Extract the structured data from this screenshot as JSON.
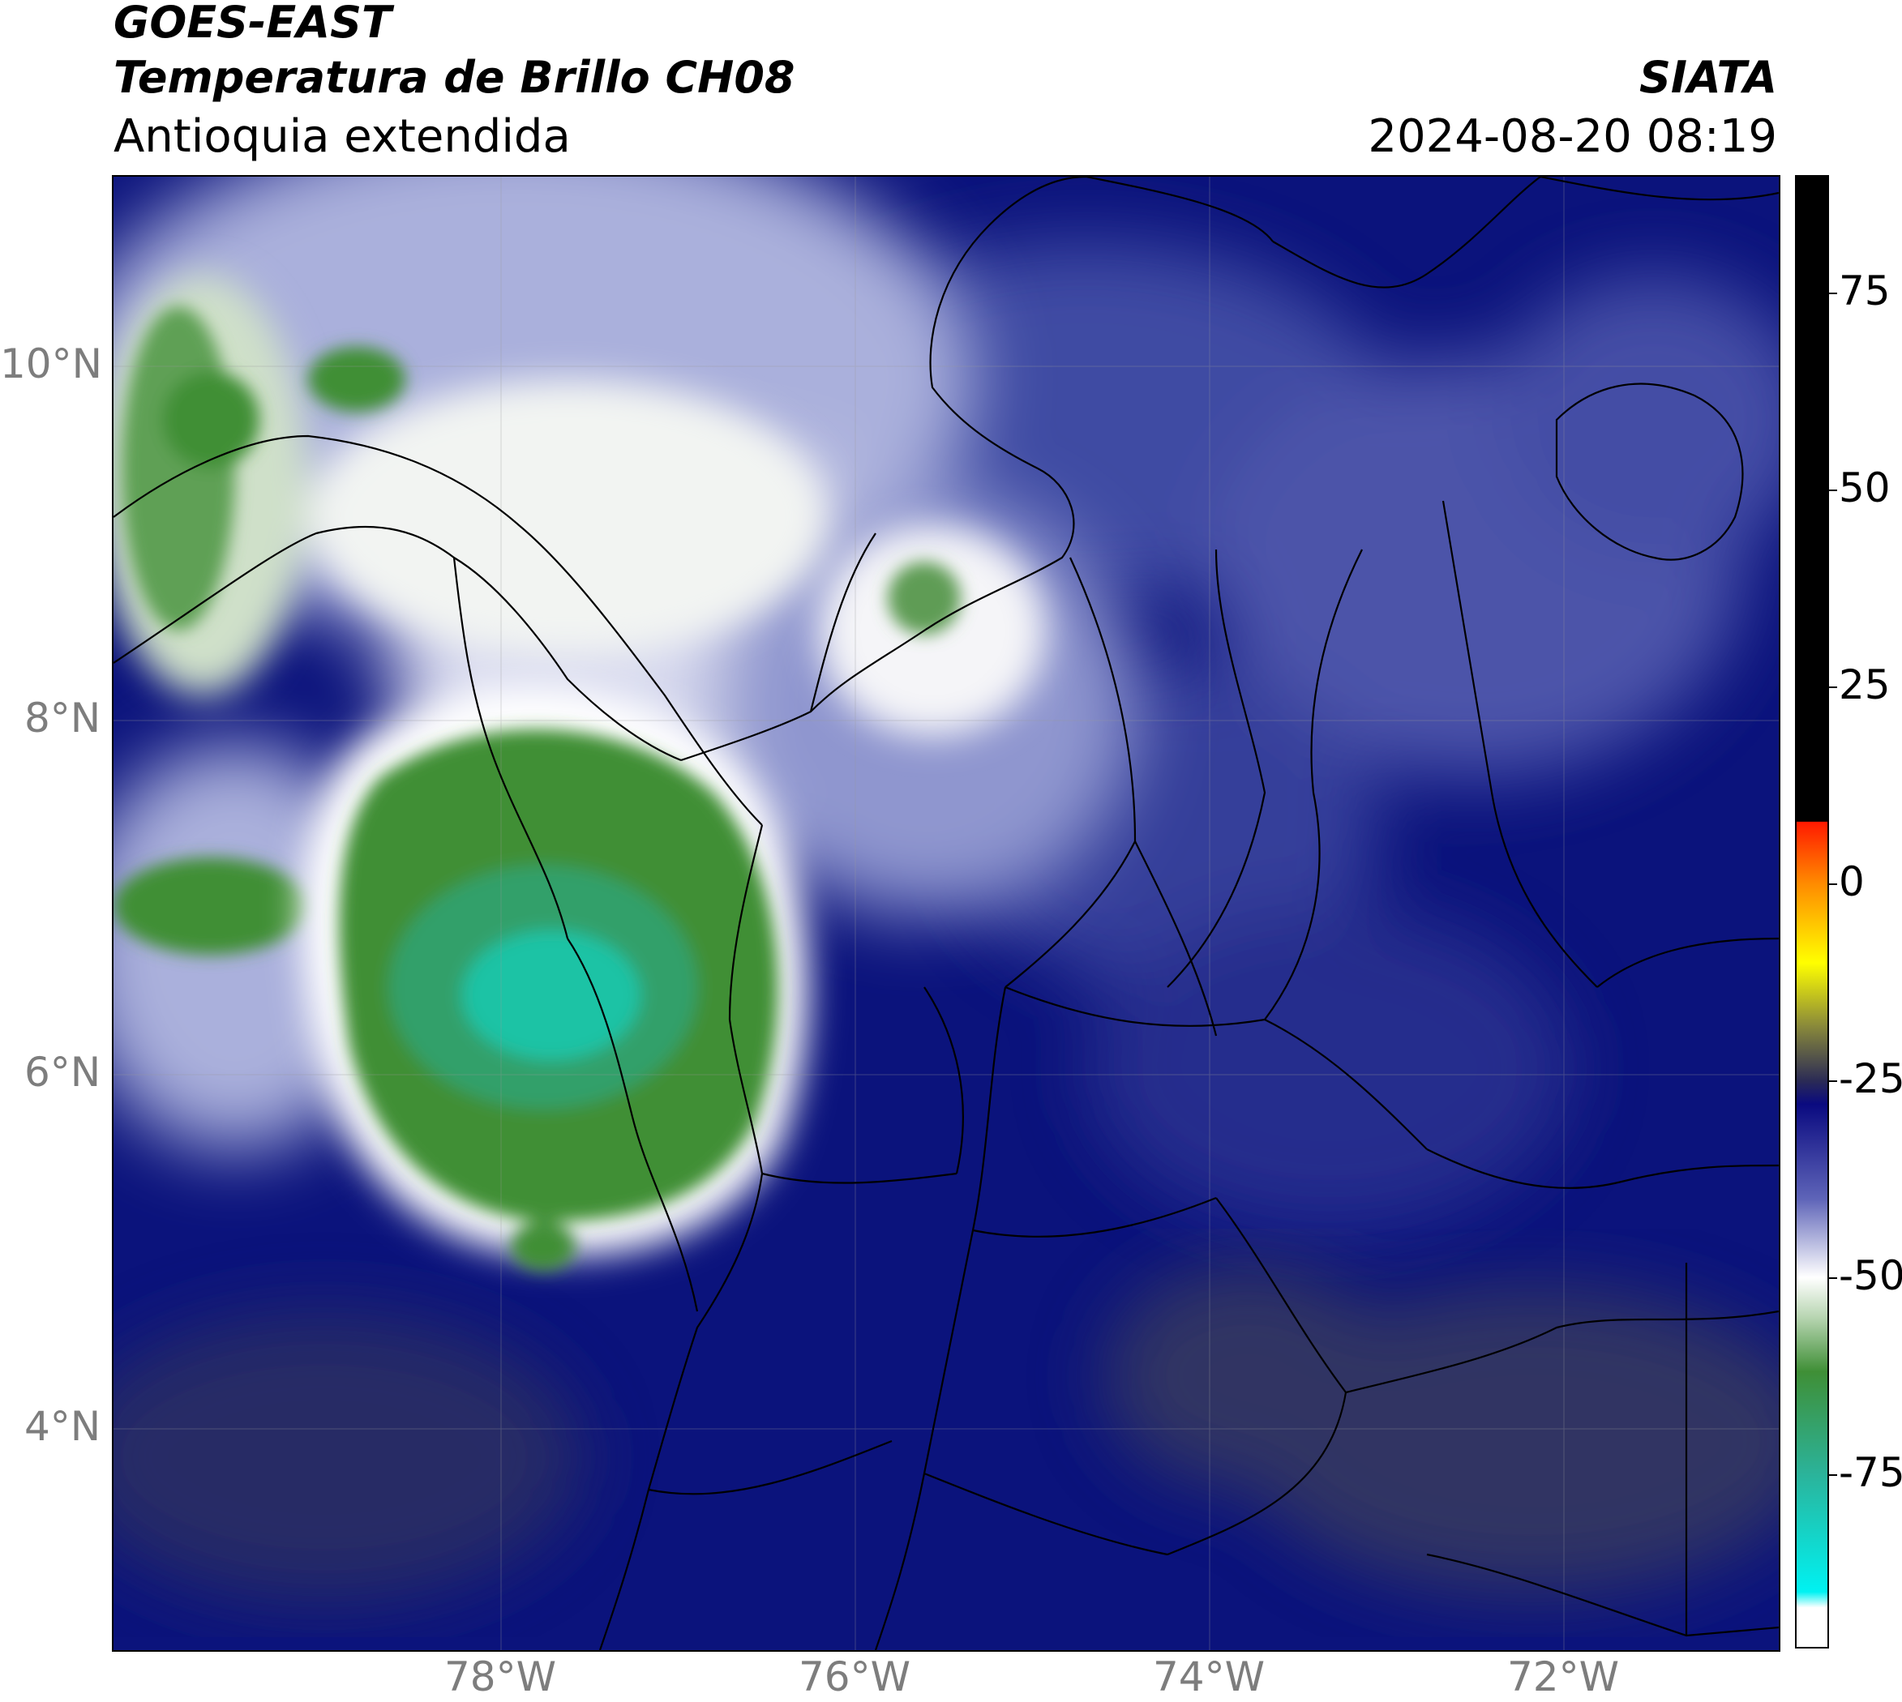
{
  "header": {
    "satellite": "GOES-EAST",
    "product": "Temperatura de Brillo CH08",
    "region": "Antioquia extendida",
    "agency": "SIATA",
    "timestamp": "2024-08-20 08:19"
  },
  "map": {
    "lon_range": [
      -80.2,
      -70.8
    ],
    "lat_range": [
      3.3,
      11.1
    ],
    "lat_ticks": [
      {
        "value": 10,
        "label": "10°N"
      },
      {
        "value": 8,
        "label": "8°N"
      },
      {
        "value": 6,
        "label": "6°N"
      },
      {
        "value": 4,
        "label": "4°N"
      }
    ],
    "lon_ticks": [
      {
        "value": -78,
        "label": "78°W"
      },
      {
        "value": -76,
        "label": "76°W"
      },
      {
        "value": -74,
        "label": "74°W"
      },
      {
        "value": -72,
        "label": "72°W"
      }
    ],
    "background_color": "#0b137c",
    "cold_cloud_color": "#3f8f36",
    "coldest_core_color": "#1fc3a5"
  },
  "colorbar": {
    "range": [
      -97,
      90
    ],
    "ticks": [
      {
        "value": 75,
        "label": "75"
      },
      {
        "value": 50,
        "label": "50"
      },
      {
        "value": 25,
        "label": "25"
      },
      {
        "value": 0,
        "label": "0"
      },
      {
        "value": -25,
        "label": "-25"
      },
      {
        "value": -50,
        "label": "-50"
      },
      {
        "value": -75,
        "label": "-75"
      }
    ],
    "stops": [
      {
        "value": 90,
        "color": "#000000"
      },
      {
        "value": 8,
        "color": "#000000"
      },
      {
        "value": 7.9,
        "color": "#ff1a00"
      },
      {
        "value": 0,
        "color": "#ff8c00"
      },
      {
        "value": -10,
        "color": "#ffff00"
      },
      {
        "value": -18,
        "color": "#8a8a3a"
      },
      {
        "value": -25,
        "color": "#2b2b55"
      },
      {
        "value": -28,
        "color": "#0a0a80"
      },
      {
        "value": -40,
        "color": "#5e64b8"
      },
      {
        "value": -50,
        "color": "#ffffff"
      },
      {
        "value": -55,
        "color": "#b9d6b3"
      },
      {
        "value": -62,
        "color": "#3f8f36"
      },
      {
        "value": -75,
        "color": "#2bb39a"
      },
      {
        "value": -90,
        "color": "#00f2f2"
      },
      {
        "value": -92,
        "color": "#ffffff"
      },
      {
        "value": -97,
        "color": "#ffffff"
      }
    ]
  }
}
